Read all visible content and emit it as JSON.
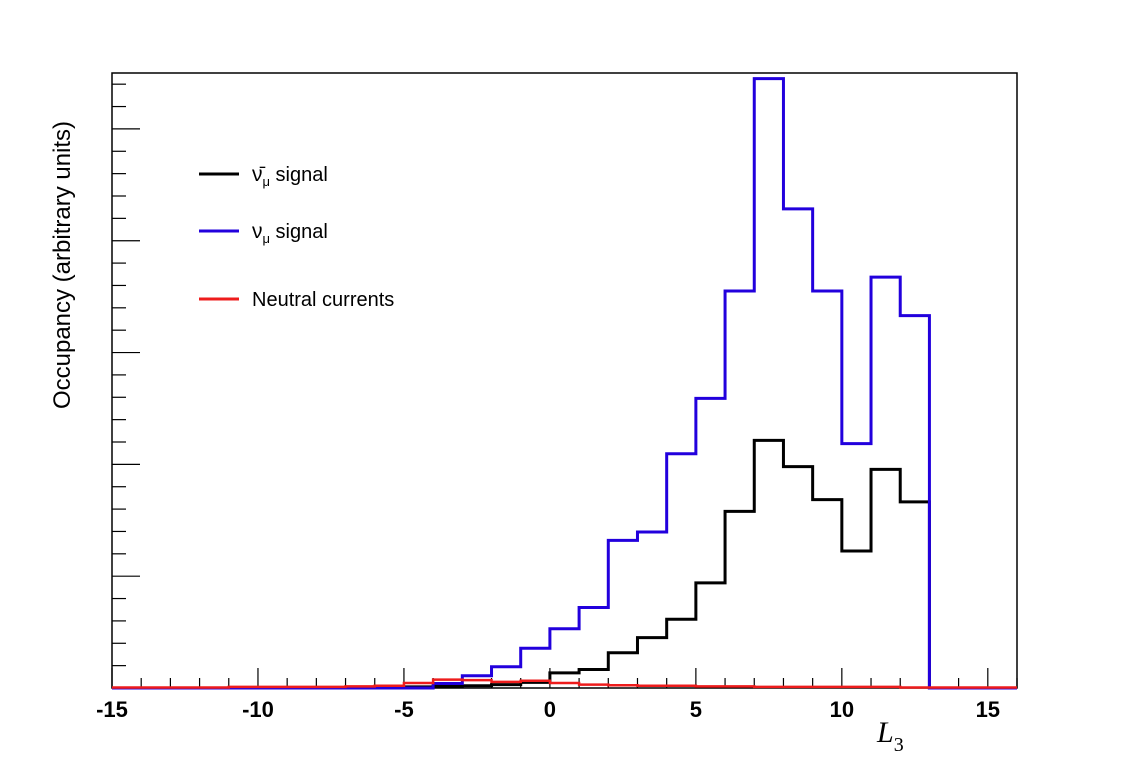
{
  "chart_data": {
    "type": "line",
    "title": "",
    "xlabel": "L",
    "xlabel_subscript": "3",
    "ylabel": "Occupancy (arbitrary units)",
    "xlim": [
      -15,
      16
    ],
    "ylim": [
      0,
      11
    ],
    "x_ticks": [
      -15,
      -10,
      -5,
      0,
      5,
      10,
      15
    ],
    "x_tick_labels": [
      "-15",
      "-10",
      "-5",
      "0",
      "5",
      "10",
      "15"
    ],
    "y_tick_labels_shown": false,
    "grid": false,
    "legend_position": "top-left",
    "bin_edges": [
      -15,
      -14,
      -13,
      -12,
      -11,
      -10,
      -9,
      -8,
      -7,
      -6,
      -5,
      -4,
      -3,
      -2,
      -1,
      0,
      1,
      2,
      3,
      4,
      5,
      6,
      7,
      8,
      9,
      10,
      11,
      12,
      13,
      14,
      15,
      16
    ],
    "series": [
      {
        "name": "signal",
        "legend_symbol": "ν̄",
        "legend_subscript": "μ",
        "color": "#000000",
        "values": [
          0,
          0,
          0,
          0,
          0,
          0,
          0,
          0,
          0,
          0,
          0.02,
          0.03,
          0.04,
          0.06,
          0.1,
          0.27,
          0.33,
          0.63,
          0.9,
          1.23,
          1.88,
          3.16,
          4.43,
          3.96,
          3.37,
          2.45,
          3.91,
          3.33,
          0,
          0,
          0
        ]
      },
      {
        "name": "signal",
        "legend_symbol": "ν",
        "legend_subscript": "μ",
        "color": "#2200dd",
        "values": [
          0,
          0,
          0,
          0,
          0,
          0,
          0,
          0,
          0,
          0,
          0,
          0.08,
          0.22,
          0.38,
          0.71,
          1.06,
          1.44,
          2.64,
          2.79,
          4.19,
          5.18,
          7.1,
          10.9,
          8.57,
          7.1,
          4.37,
          7.35,
          6.66,
          0,
          0,
          0
        ]
      },
      {
        "name": "Neutral currents",
        "color": "#ee1c1c",
        "values": [
          0.01,
          0.01,
          0.01,
          0.01,
          0.02,
          0.02,
          0.02,
          0.02,
          0.03,
          0.04,
          0.09,
          0.15,
          0.14,
          0.11,
          0.13,
          0.09,
          0.06,
          0.05,
          0.04,
          0.04,
          0.03,
          0.03,
          0.02,
          0.02,
          0.02,
          0.02,
          0.02,
          0.01,
          0.01,
          0.01,
          0.01
        ]
      }
    ]
  }
}
